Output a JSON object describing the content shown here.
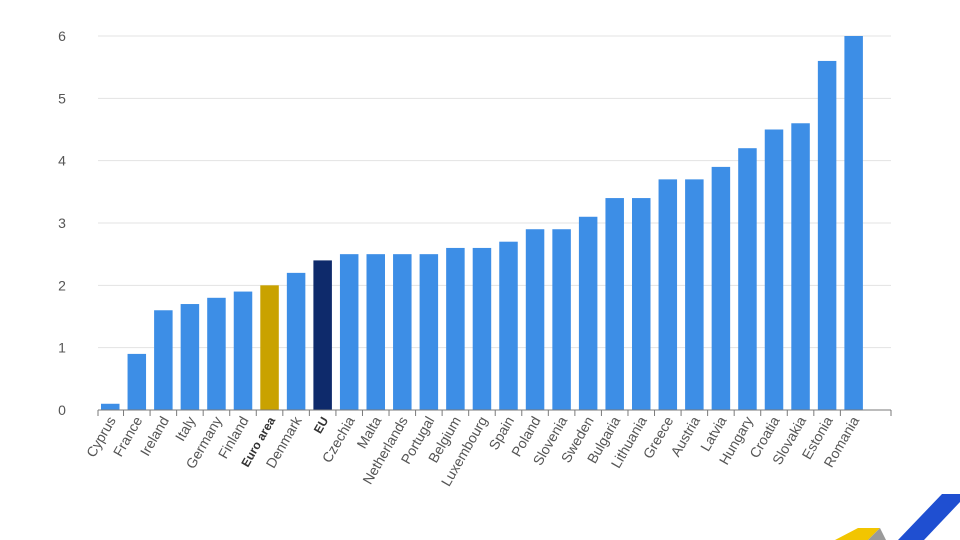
{
  "chart_data": {
    "type": "bar",
    "title": "",
    "xlabel": "",
    "ylabel": "",
    "ylim": [
      0,
      6
    ],
    "yticks": [
      0,
      1,
      2,
      3,
      4,
      5,
      6
    ],
    "grid": true,
    "categories": [
      "Cyprus",
      "France",
      "Ireland",
      "Italy",
      "Germany",
      "Finland",
      "Euro area",
      "Denmark",
      "EU",
      "Czechia",
      "Malta",
      "Netherlands",
      "Portugal",
      "Belgium",
      "Luxembourg",
      "Spain",
      "Poland",
      "Slovenia",
      "Sweden",
      "Bulgaria",
      "Lithuania",
      "Greece",
      "Austria",
      "Latvia",
      "Hungary",
      "Croatia",
      "Slovakia",
      "Estonia",
      "Romania"
    ],
    "values": [
      0.1,
      0.9,
      1.6,
      1.7,
      1.8,
      1.9,
      2.0,
      2.2,
      2.4,
      2.5,
      2.5,
      2.5,
      2.5,
      2.6,
      2.6,
      2.7,
      2.9,
      2.9,
      3.1,
      3.4,
      3.4,
      3.7,
      3.7,
      3.9,
      4.2,
      4.5,
      4.6,
      5.6,
      6.0
    ],
    "highlight": {
      "Euro area": "#c9a200",
      "EU": "#0e2a6b"
    },
    "bold_categories": [
      "Euro area",
      "EU"
    ],
    "colors": {
      "bar": "#3d8ee6",
      "grid": "#e3e3e3",
      "axis": "#7a7a7a"
    }
  },
  "decor": {
    "logo_colors": [
      "#f2c500",
      "#9a9a9a",
      "#1f4fd1"
    ]
  }
}
